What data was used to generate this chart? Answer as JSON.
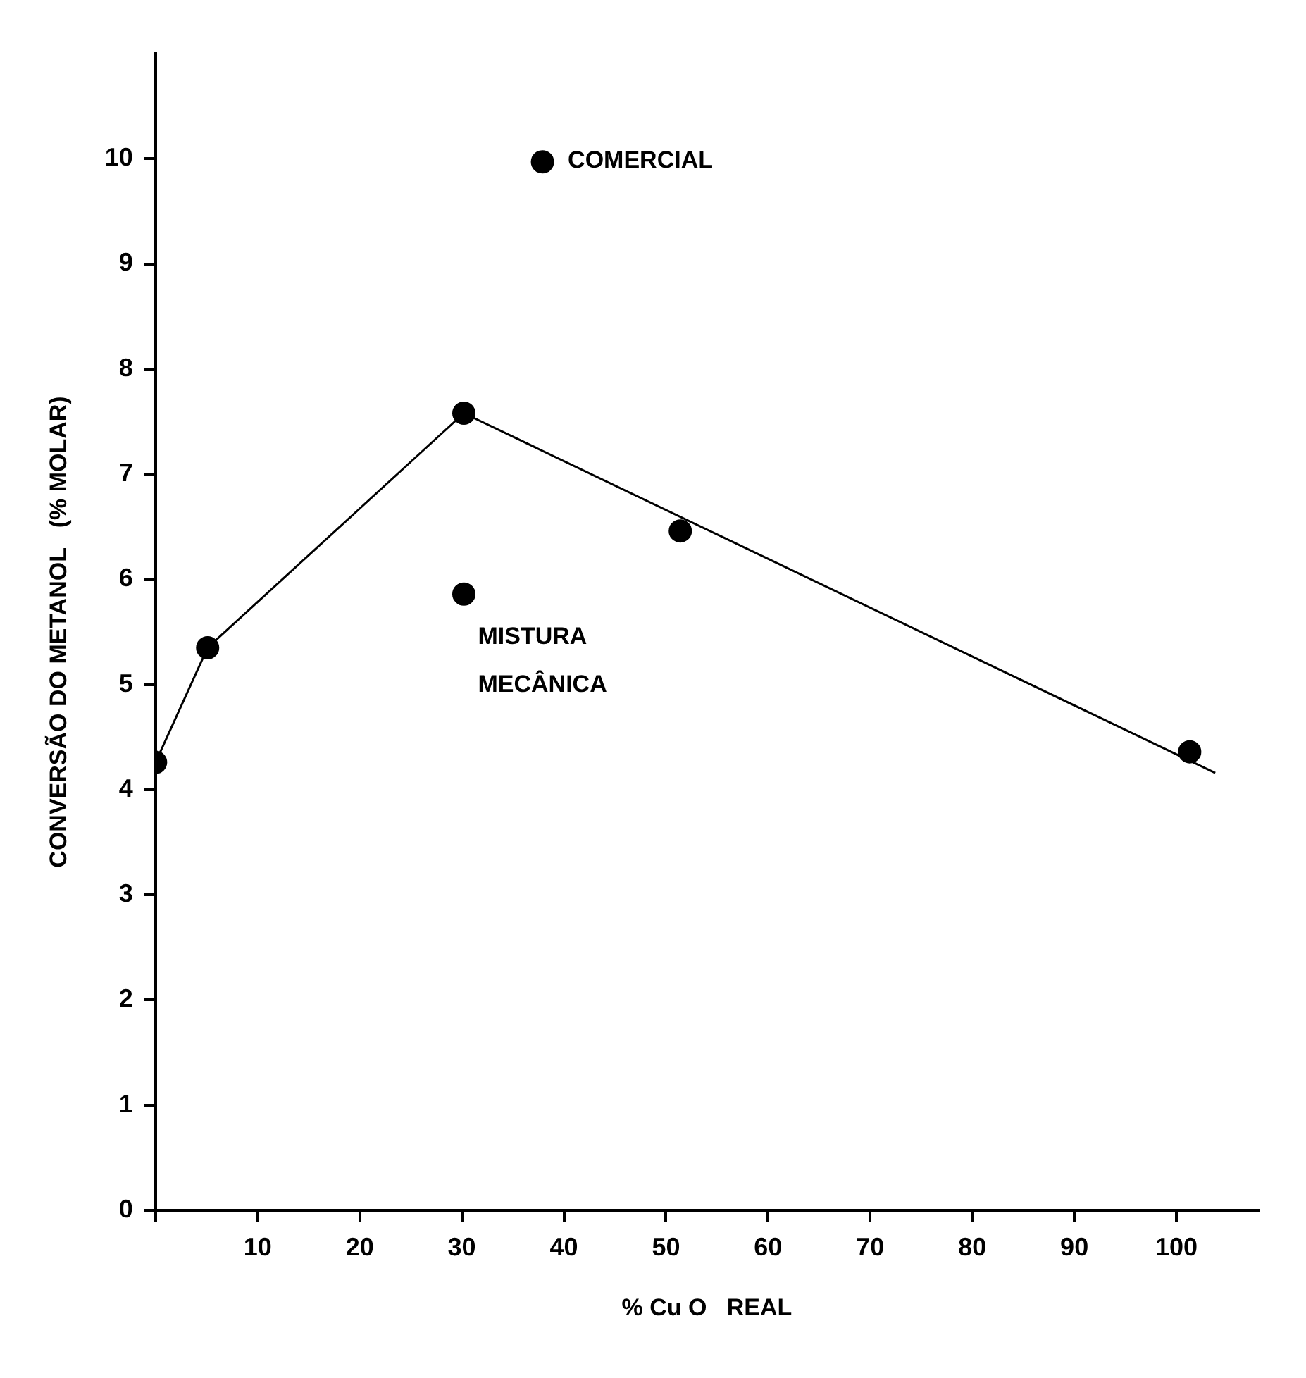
{
  "chart_data": {
    "type": "line",
    "xlabel": "% Cu O   REAL",
    "ylabel": "CONVERSÃO DO METANOL   (% MOLAR)",
    "xlim": [
      0,
      108
    ],
    "ylim": [
      0,
      11
    ],
    "xticks": [
      {
        "value": 0,
        "label": null
      },
      10,
      20,
      30,
      40,
      50,
      60,
      70,
      80,
      90,
      100
    ],
    "yticks": [
      0,
      1,
      2,
      3,
      4,
      5,
      6,
      7,
      8,
      9,
      10
    ],
    "grid": false,
    "legend": false,
    "series": [
      {
        "color": "#000000",
        "marker": "none",
        "x": [
          0,
          5.1,
          30.2,
          103.8
        ],
        "values": [
          4.26,
          5.35,
          7.58,
          4.16
        ]
      },
      {
        "type": "scatter",
        "color": "#000000",
        "marker": "circle",
        "x": [
          0,
          5.1,
          30.2,
          51.4,
          101.3
        ],
        "values": [
          4.26,
          5.35,
          7.58,
          6.46,
          4.36
        ]
      },
      {
        "type": "scatter",
        "color": "#000000",
        "marker": "circle",
        "x": [
          30.2,
          37.9
        ],
        "values": [
          5.86,
          9.97
        ]
      }
    ],
    "annotations": [
      {
        "text": "COMERCIAL",
        "x": 37.9,
        "y": 9.97
      },
      {
        "text": "MISTURA\nMECÂNICA",
        "x": 30.2,
        "y": 5.86
      }
    ]
  }
}
